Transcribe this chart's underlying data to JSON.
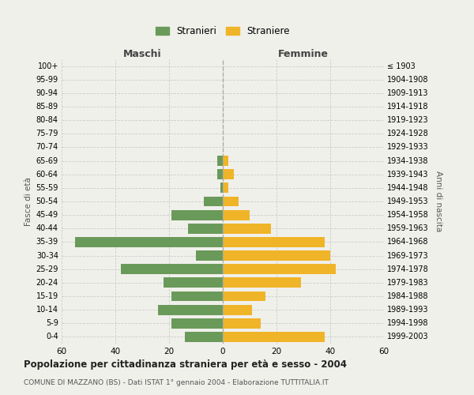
{
  "age_groups": [
    "100+",
    "95-99",
    "90-94",
    "85-89",
    "80-84",
    "75-79",
    "70-74",
    "65-69",
    "60-64",
    "55-59",
    "50-54",
    "45-49",
    "40-44",
    "35-39",
    "30-34",
    "25-29",
    "20-24",
    "15-19",
    "10-14",
    "5-9",
    "0-4"
  ],
  "birth_years": [
    "≤ 1903",
    "1904-1908",
    "1909-1913",
    "1914-1918",
    "1919-1923",
    "1924-1928",
    "1929-1933",
    "1934-1938",
    "1939-1943",
    "1944-1948",
    "1949-1953",
    "1954-1958",
    "1959-1963",
    "1964-1968",
    "1969-1973",
    "1974-1978",
    "1979-1983",
    "1984-1988",
    "1989-1993",
    "1994-1998",
    "1999-2003"
  ],
  "maschi": [
    0,
    0,
    0,
    0,
    0,
    0,
    0,
    2,
    2,
    1,
    7,
    19,
    13,
    55,
    10,
    38,
    22,
    19,
    24,
    19,
    14
  ],
  "femmine": [
    0,
    0,
    0,
    0,
    0,
    0,
    0,
    2,
    4,
    2,
    6,
    10,
    18,
    38,
    40,
    42,
    29,
    16,
    11,
    14,
    38
  ],
  "color_maschi": "#6a9a5a",
  "color_femmine": "#f0b429",
  "background_color": "#f0f0eb",
  "grid_color": "#cccccc",
  "title": "Popolazione per cittadinanza straniera per età e sesso - 2004",
  "subtitle": "COMUNE DI MAZZANO (BS) - Dati ISTAT 1° gennaio 2004 - Elaborazione TUTTITALIA.IT",
  "xlabel_left": "Maschi",
  "xlabel_right": "Femmine",
  "ylabel_left": "Fasce di età",
  "ylabel_right": "Anni di nascita",
  "legend_maschi": "Stranieri",
  "legend_femmine": "Straniere",
  "xlim": 60
}
